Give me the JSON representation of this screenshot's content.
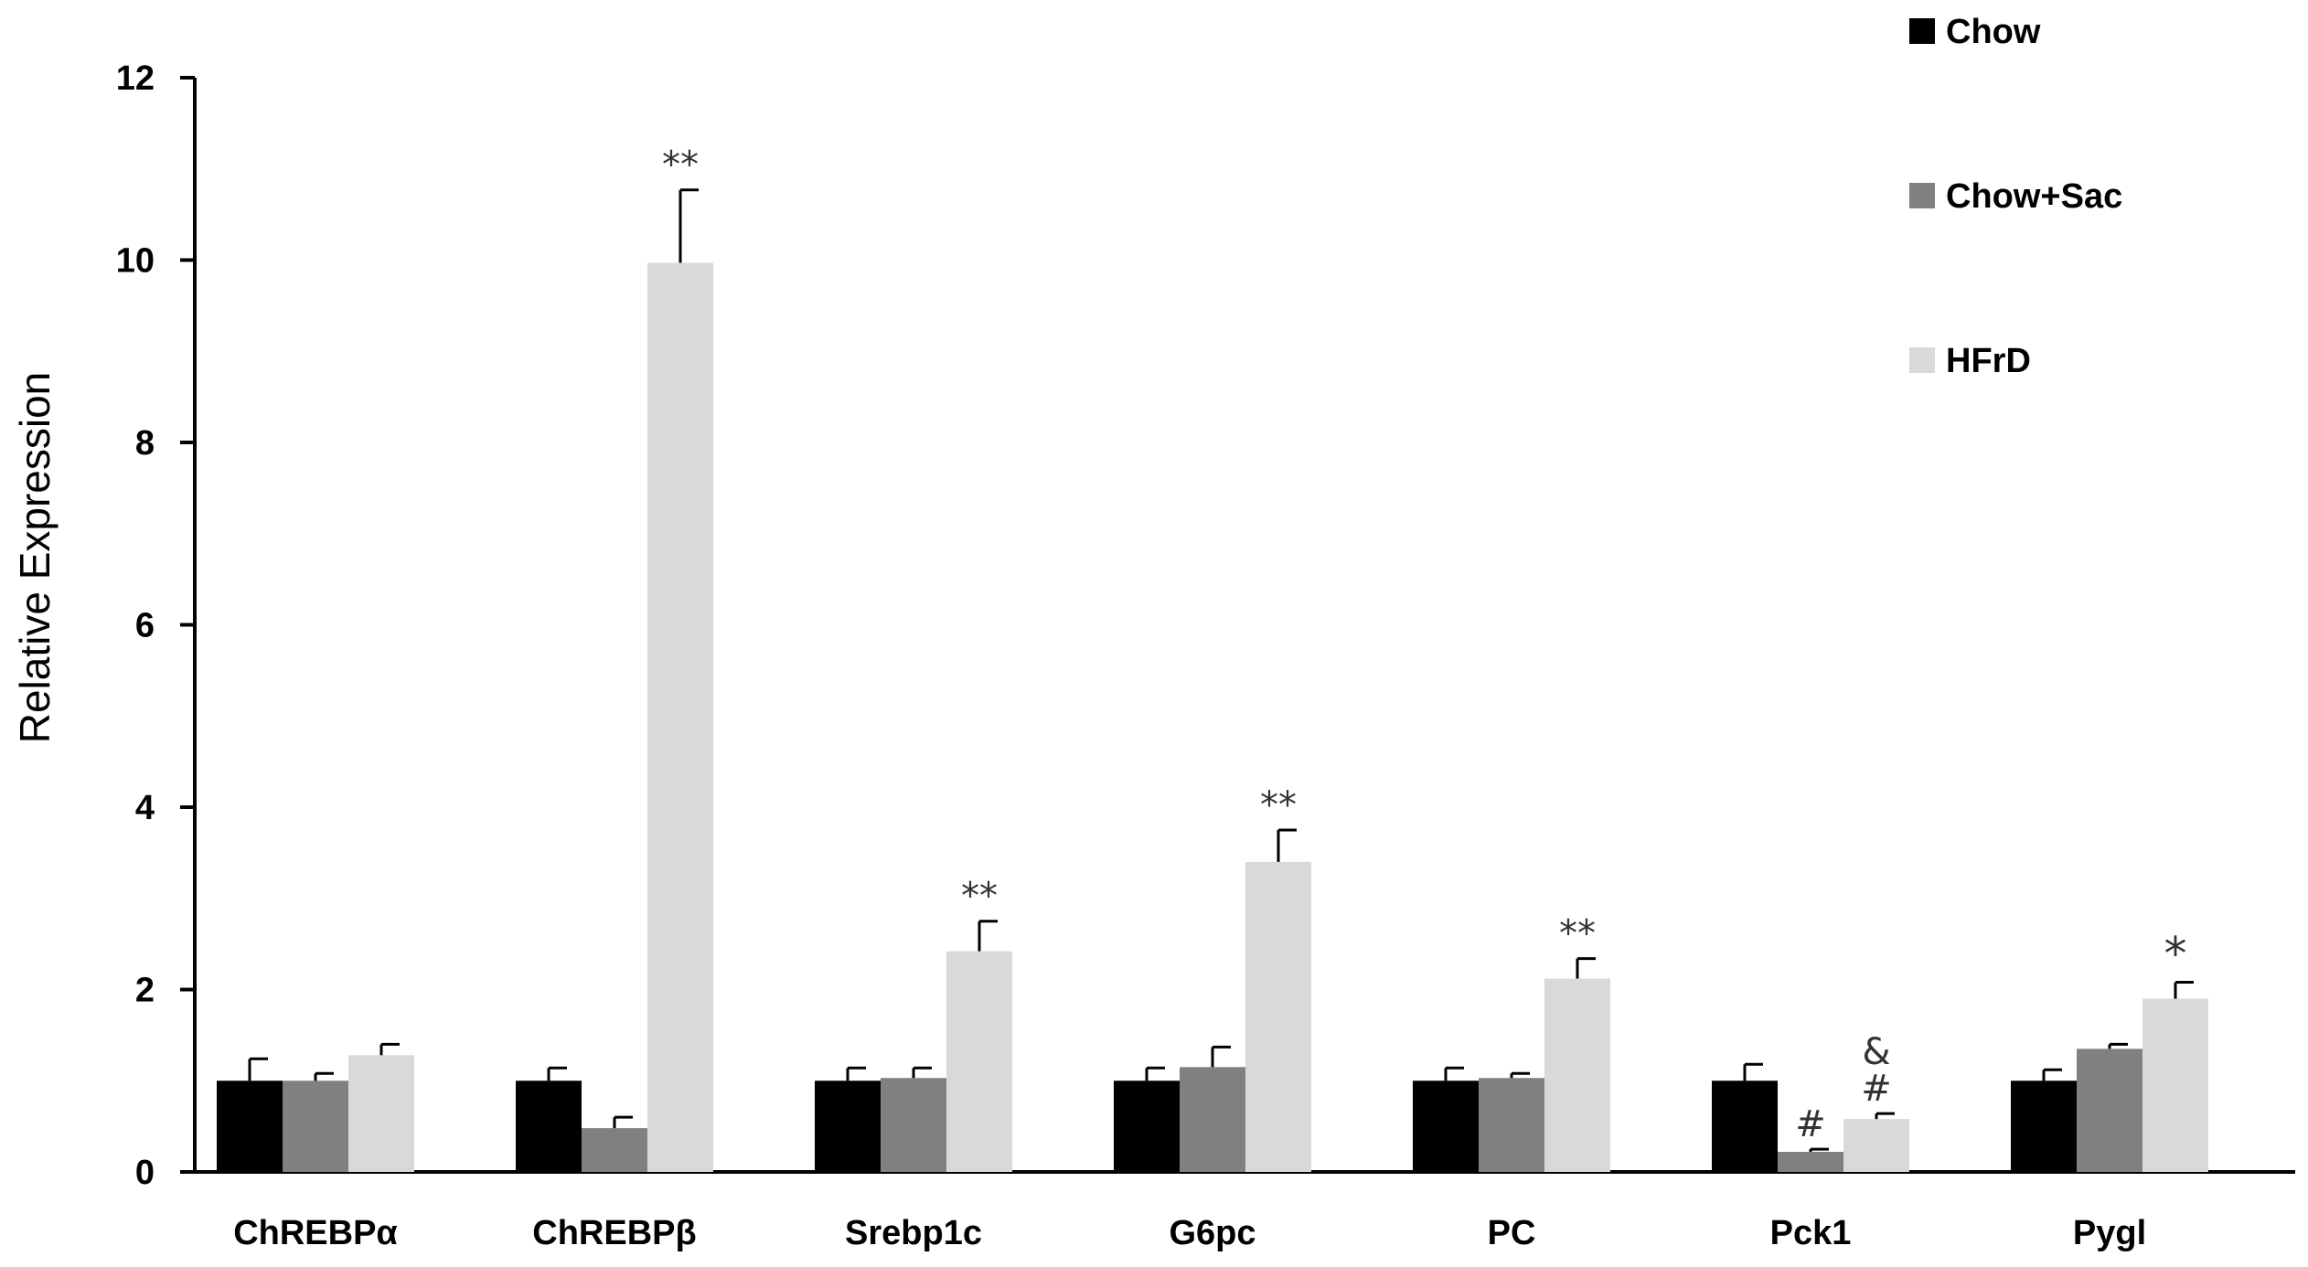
{
  "chart_data": {
    "type": "bar",
    "ylabel": "Relative Expression",
    "xlabel": "",
    "ylim": [
      0,
      12
    ],
    "yticks": [
      0,
      2,
      4,
      6,
      8,
      10,
      12
    ],
    "categories": [
      "ChREBPα",
      "ChREBPβ",
      "Srebp1c",
      "G6pc",
      "PC",
      "Pck1",
      "Pygl"
    ],
    "series": [
      {
        "name": "Chow",
        "color": "#000000",
        "values": [
          1.0,
          1.0,
          1.0,
          1.0,
          1.0,
          1.0,
          1.0
        ],
        "errors": [
          0.24,
          0.14,
          0.14,
          0.14,
          0.14,
          0.18,
          0.12
        ]
      },
      {
        "name": "Chow+Sac",
        "color": "#808080",
        "values": [
          1.0,
          0.48,
          1.03,
          1.15,
          1.03,
          0.22,
          1.35
        ],
        "errors": [
          0.08,
          0.12,
          0.11,
          0.22,
          0.05,
          0.03,
          0.05
        ]
      },
      {
        "name": "HFrD",
        "color": "#d9d9d9",
        "values": [
          1.28,
          9.97,
          2.42,
          3.4,
          2.12,
          0.58,
          1.9
        ],
        "errors": [
          0.12,
          0.8,
          0.33,
          0.35,
          0.22,
          0.06,
          0.18
        ]
      }
    ],
    "annotations": [
      {
        "category": 1,
        "series": 2,
        "text": "**"
      },
      {
        "category": 2,
        "series": 2,
        "text": "**"
      },
      {
        "category": 3,
        "series": 2,
        "text": "**"
      },
      {
        "category": 4,
        "series": 2,
        "text": "**"
      },
      {
        "category": 5,
        "series": 1,
        "text": "#"
      },
      {
        "category": 5,
        "series": 2,
        "text": "#"
      },
      {
        "category": 5,
        "series": 2,
        "text": "&"
      },
      {
        "category": 6,
        "series": 2,
        "text": "*"
      }
    ],
    "legend": "top-right",
    "grid": false
  }
}
